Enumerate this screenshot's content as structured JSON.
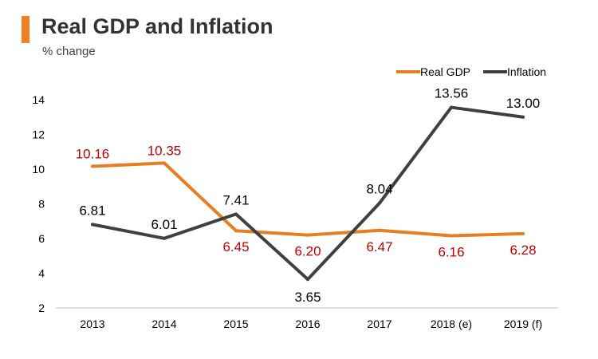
{
  "header": {
    "title": "Real GDP and Inflation",
    "subtitle": "% change"
  },
  "chart_data": {
    "type": "line",
    "title": "Real GDP and Inflation",
    "subtitle": "% change",
    "xlabel": "",
    "ylabel": "% change",
    "categories": [
      "2013",
      "2014",
      "2015",
      "2016",
      "2017",
      "2018 (e)",
      "2019 (f)"
    ],
    "ylim": [
      2,
      14
    ],
    "yticks": [
      2,
      4,
      6,
      8,
      10,
      12,
      14
    ],
    "legend_position": "top-right",
    "series": [
      {
        "name": "Real GDP",
        "color": "#e67e22",
        "label_color": "#c00000",
        "values": [
          10.16,
          10.35,
          6.45,
          6.2,
          6.47,
          6.16,
          6.28
        ],
        "labels": [
          "10.16",
          "10.35",
          "6.45",
          "6.20",
          "6.47",
          "6.16",
          "6.28"
        ]
      },
      {
        "name": "Inflation",
        "color": "#404040",
        "label_color": "#000000",
        "values": [
          6.81,
          6.01,
          7.41,
          3.65,
          8.04,
          13.56,
          13.0
        ],
        "labels": [
          "6.81",
          "6.01",
          "7.41",
          "3.65",
          "8.04",
          "13.56",
          "13.00"
        ]
      }
    ]
  }
}
